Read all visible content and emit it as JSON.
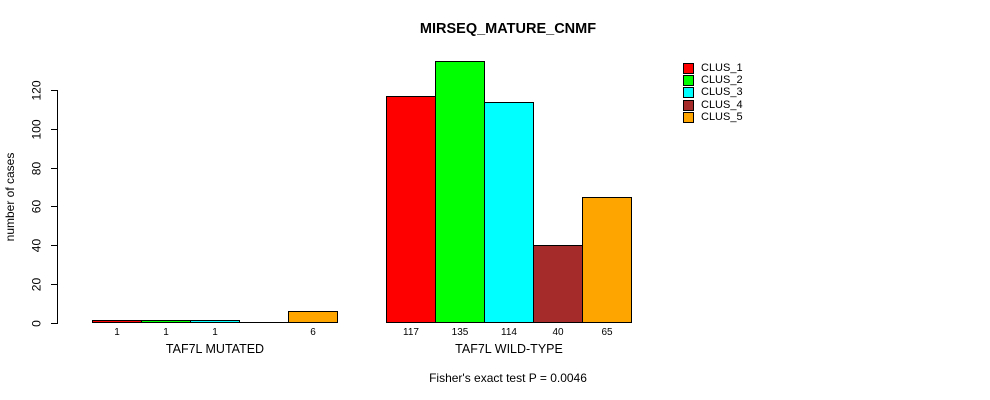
{
  "title": "MIRSEQ_MATURE_CNMF",
  "chart_data": {
    "type": "bar",
    "title": "MIRSEQ_MATURE_CNMF",
    "ylabel": "number of cases",
    "xlabel": "",
    "ylim": [
      0,
      135
    ],
    "yticks": [
      0,
      20,
      40,
      60,
      80,
      100,
      120
    ],
    "grid": false,
    "legend_position": "top-right",
    "categories": [
      "TAF7L MUTATED",
      "TAF7L WILD-TYPE"
    ],
    "series": [
      {
        "name": "CLUS_1",
        "color": "#FF0000",
        "values": [
          1,
          117
        ]
      },
      {
        "name": "CLUS_2",
        "color": "#00FF00",
        "values": [
          1,
          135
        ]
      },
      {
        "name": "CLUS_3",
        "color": "#00FFFF",
        "values": [
          1,
          114
        ]
      },
      {
        "name": "CLUS_4",
        "color": "#A52A2A",
        "values": [
          0,
          40
        ]
      },
      {
        "name": "CLUS_5",
        "color": "#FFA500",
        "values": [
          6,
          65
        ]
      }
    ],
    "value_labels": [
      [
        "1",
        "1",
        "1",
        "",
        "6"
      ],
      [
        "117",
        "135",
        "114",
        "40",
        "65"
      ]
    ],
    "annotation": "Fisher's exact test P = 0.0046"
  }
}
